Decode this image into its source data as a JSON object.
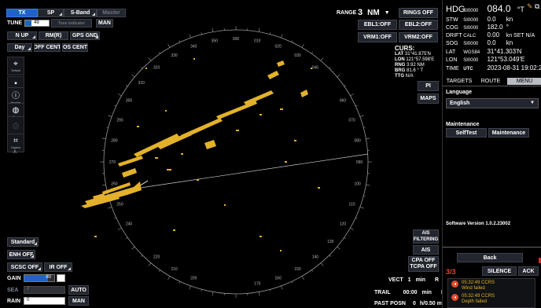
{
  "top_bar": {
    "tx": "TX",
    "sp": "SP",
    "band": "S-Band",
    "master": "Master",
    "tune_label": "TUNE",
    "tune_value": "49",
    "tune_indicator": "Tune indicator",
    "tune_mode": "MAN"
  },
  "left_controls": {
    "n_up": "N UP",
    "rm": "RM(R)",
    "gps": "GPS GND",
    "day": "Day",
    "off_cent": "OFF CENT",
    "os_cent": "OS CENT"
  },
  "tools": [
    {
      "icon": "target-pointer-icon",
      "label": "Default"
    },
    {
      "icon": "tag-icon",
      "label": "Tgtinfo"
    },
    {
      "icon": "info-icon",
      "label": "Heading"
    },
    {
      "icon": "globe-icon",
      "label": "Chart"
    },
    {
      "icon": "camera-icon",
      "label": ""
    },
    {
      "icon": "crop-icon",
      "label": "Capture"
    },
    {
      "icon": "a-icon",
      "label": ""
    }
  ],
  "range": {
    "label": "RANGE",
    "value": "3",
    "unit": "NM",
    "rings": "RINGS OFF",
    "ebl1": "EBL1:OFF",
    "ebl2": "EBL2:OFF",
    "vrm1": "VRM1:OFF",
    "vrm2": "VRM2:OFF"
  },
  "cursor": {
    "title": "CURS:",
    "rows": [
      {
        "k": "LAT",
        "v": "31°41.875'N"
      },
      {
        "k": "LON",
        "v": "121°57.598'E"
      },
      {
        "k": "RNG",
        "v": "3.92 NM"
      },
      {
        "k": "BRG",
        "v": "81.6 ° T"
      },
      {
        "k": "TTG",
        "v": "N/A"
      }
    ],
    "pi": "PI",
    "maps": "MAPS"
  },
  "bearing_labels": [
    {
      "t": "020"
    },
    {
      "t": "030"
    },
    {
      "t": "040"
    },
    {
      "t": "060"
    },
    {
      "t": "070"
    },
    {
      "t": "080"
    },
    {
      "t": "090"
    },
    {
      "t": "100"
    },
    {
      "t": "110"
    },
    {
      "t": "120"
    },
    {
      "t": "130"
    },
    {
      "t": "140"
    },
    {
      "t": "150"
    },
    {
      "t": "160"
    },
    {
      "t": "170"
    },
    {
      "t": "200"
    },
    {
      "t": "210"
    },
    {
      "t": "220"
    },
    {
      "t": "240"
    },
    {
      "t": "250"
    },
    {
      "t": "260"
    },
    {
      "t": "270"
    },
    {
      "t": "280"
    },
    {
      "t": "290"
    },
    {
      "t": "300"
    },
    {
      "t": "310"
    },
    {
      "t": "320"
    },
    {
      "t": "330"
    },
    {
      "t": "340"
    },
    {
      "t": "350"
    },
    {
      "t": "000"
    },
    {
      "t": "010"
    }
  ],
  "bottom_left": {
    "standard": "Standard",
    "enh": "ENH OFF",
    "scsc": "SCSC OFF",
    "ir": "IR OFF",
    "gain_label": "GAIN",
    "gain_value": "80",
    "gain_level": 0.8,
    "sea_label": "SEA",
    "sea_value": "7",
    "sea_mode": "AUTO",
    "rain_label": "RAIN",
    "rain_value": "0",
    "rain_mode": "MAN"
  },
  "bottom_center": {
    "ais_filtering": "AIS FILTERING",
    "ais": "AIS",
    "cpa": "CPA OFF",
    "tcpa": "TCPA OFF",
    "vect_label": "VECT",
    "vect_value": "1",
    "vect_unit": "min",
    "vect_mode": "R",
    "trail_label": "TRAIL",
    "trail_value": "00:00",
    "trail_unit": "min",
    "trail_mode": "R",
    "pastposn_label": "PAST POSN",
    "pastposn_value": "0",
    "pastposn_unit": "h/0.50 min"
  },
  "nav": {
    "rows": [
      {
        "k": "HDG",
        "src": "SI0000",
        "v": "084.0",
        "u": "°T"
      },
      {
        "k": "STW",
        "src": "SI0000",
        "v": "0.0",
        "u": "kn"
      },
      {
        "k": "COG",
        "src": "SI0000",
        "v": "182.0",
        "u": "°"
      },
      {
        "k": "DRIFT",
        "src": "CALC",
        "v": "0.00",
        "u": "kn SET  N/A"
      },
      {
        "k": "SOG",
        "src": "SI0000",
        "v": "0.0",
        "u": "kn"
      },
      {
        "k": "LAT",
        "src": "WGS84",
        "v": "31°41.303'N",
        "u": ""
      },
      {
        "k": "LON",
        "src": "SI0000",
        "v": "121°53.049'E",
        "u": ""
      },
      {
        "k": "TIME",
        "src": "UTC",
        "v": "2023-08-31 19:02:27",
        "u": ""
      }
    ]
  },
  "tabs": {
    "targets": "TARGETS",
    "route": "ROUTE",
    "menu": "MENU"
  },
  "menu": {
    "language_label": "Language",
    "language_value": "English",
    "maintenance_label": "Maintenance",
    "selftest": "SelfTest",
    "maintenance_btn": "Maintenance",
    "software_version": "Software Version 1.0.2.23002",
    "back": "Back"
  },
  "alarm": {
    "count": "3/3",
    "silence": "SILENCE",
    "ack": "ACK",
    "items": [
      {
        "time": "05:32:49 CCRS",
        "msg": "Wind failed"
      },
      {
        "time": "05:32:49 CCRS",
        "msg": "Depth failed"
      }
    ]
  },
  "colors": {
    "accent": "#1f63c8",
    "echo": "#e3b12a",
    "panel": "#23262e",
    "alarm": "#e0492d"
  }
}
